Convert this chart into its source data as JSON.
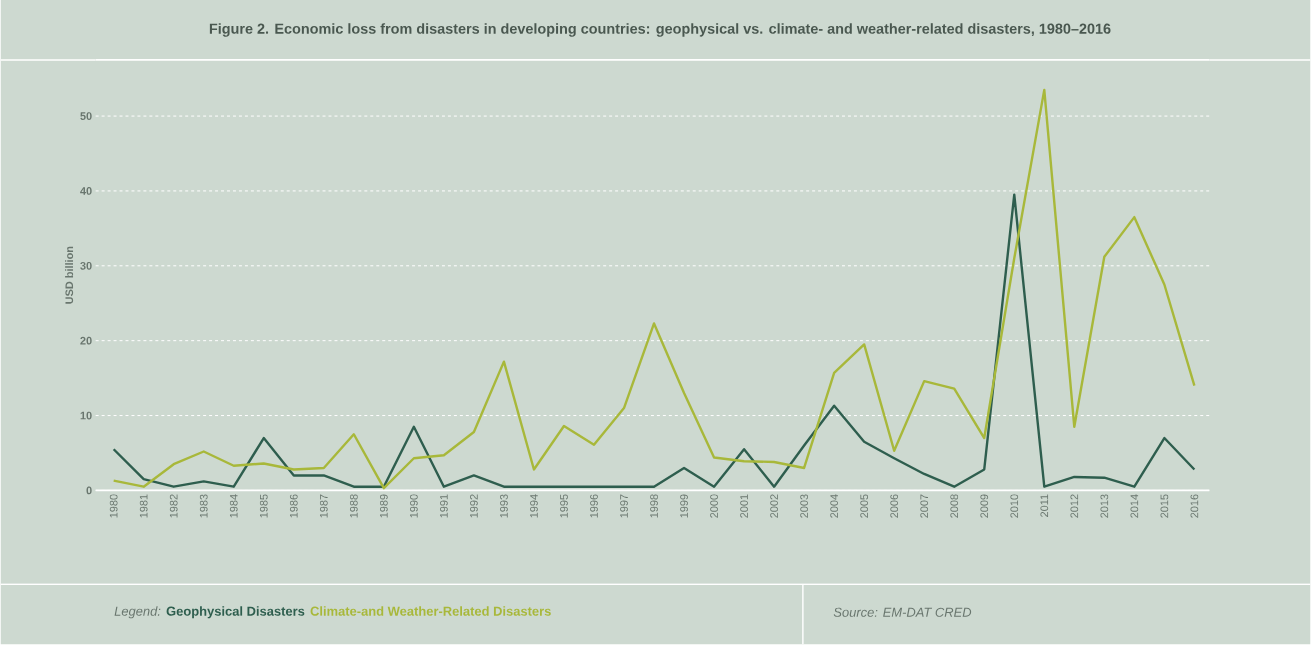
{
  "chart_data": {
    "type": "line",
    "title": "Figure 2. Economic loss from disasters in developing countries: geophysical vs. climate- and weather-related disasters, 1980–2016",
    "ylabel": "USD billion",
    "legend_title": "Legend:",
    "annotations": [
      "Source: EM-DAT CRED"
    ],
    "categories": [
      "1980",
      "1981",
      "1982",
      "1983",
      "1984",
      "1985",
      "1986",
      "1987",
      "1988",
      "1989",
      "1990",
      "1991",
      "1992",
      "1993",
      "1994",
      "1995",
      "1996",
      "1997",
      "1998",
      "1999",
      "2000",
      "2001",
      "2002",
      "2003",
      "2004",
      "2005",
      "2006",
      "2007",
      "2008",
      "2009",
      "2010",
      "2011",
      "2012",
      "2013",
      "2014",
      "2015",
      "2016"
    ],
    "series": [
      {
        "name": "Geophysical Disasters",
        "color": "#2e5e4e",
        "values": [
          5.5,
          1.5,
          0.5,
          1.2,
          0.5,
          7,
          2,
          2,
          0.5,
          0.5,
          8.5,
          0.5,
          2,
          0.5,
          0.5,
          0.5,
          0.5,
          0.5,
          0.5,
          3,
          0.5,
          5.5,
          0.5,
          6,
          11.3,
          6.5,
          4.3,
          2.2,
          0.5,
          2.8,
          39.5,
          0.5,
          1.8,
          1.7,
          0.5,
          7,
          2.8
        ]
      },
      {
        "name": "Climate-and Weather-Related Disasters",
        "color": "#a8b83a",
        "values": [
          1.3,
          0.5,
          3.5,
          5.2,
          3.3,
          3.6,
          2.8,
          3,
          7.5,
          0.3,
          4.3,
          4.7,
          7.8,
          17.2,
          2.8,
          8.6,
          6.1,
          11,
          22.3,
          13,
          4.4,
          3.9,
          3.8,
          3,
          15.7,
          19.5,
          5.3,
          14.6,
          13.6,
          7,
          31,
          53.5,
          8.5,
          31.2,
          36.5,
          27.5,
          14
        ]
      }
    ],
    "ylim": [
      0,
      57.5
    ],
    "yticks": [
      0,
      10,
      20,
      30,
      40,
      50
    ],
    "grid": "y",
    "legend": "bottom",
    "marker": "none",
    "line_style": "solid"
  }
}
